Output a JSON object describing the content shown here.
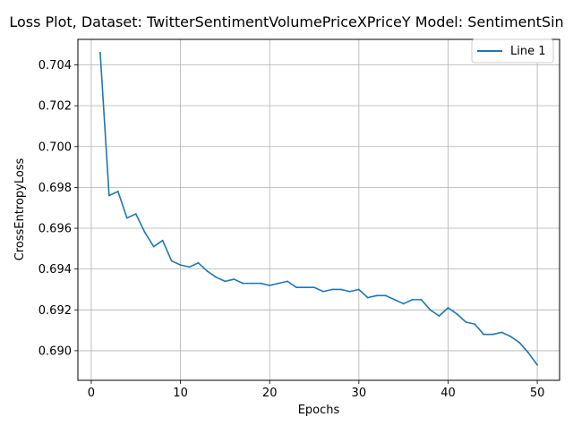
{
  "chart_data": {
    "type": "line",
    "title": "Loss Plot, Dataset: TwitterSentimentVolumePriceXPriceY Model: SentimentSin",
    "xlabel": "Epochs",
    "ylabel": "CrossEntropyLoss",
    "xlim": [
      -1.5,
      52.5
    ],
    "ylim": [
      0.68855,
      0.70525
    ],
    "xticks": [
      0,
      10,
      20,
      30,
      40,
      50
    ],
    "yticks": [
      0.69,
      0.692,
      0.694,
      0.696,
      0.698,
      0.7,
      0.702,
      0.704
    ],
    "xtick_labels": [
      "0",
      "10",
      "20",
      "30",
      "40",
      "50"
    ],
    "ytick_labels": [
      "0.690",
      "0.692",
      "0.694",
      "0.696",
      "0.698",
      "0.700",
      "0.702",
      "0.704"
    ],
    "grid": true,
    "legend_position": "top-right",
    "line_color": "#1f77b4",
    "series": [
      {
        "name": "Line 1",
        "x": [
          1,
          2,
          3,
          4,
          5,
          6,
          7,
          8,
          9,
          10,
          11,
          12,
          13,
          14,
          15,
          16,
          17,
          18,
          19,
          20,
          21,
          22,
          23,
          24,
          25,
          26,
          27,
          28,
          29,
          30,
          31,
          32,
          33,
          34,
          35,
          36,
          37,
          38,
          39,
          40,
          41,
          42,
          43,
          44,
          45,
          46,
          47,
          48,
          49,
          50
        ],
        "y": [
          0.7046,
          0.6976,
          0.6978,
          0.6965,
          0.6967,
          0.6958,
          0.6951,
          0.6954,
          0.6944,
          0.6942,
          0.6941,
          0.6943,
          0.6939,
          0.6936,
          0.6934,
          0.6935,
          0.6933,
          0.6933,
          0.6933,
          0.6932,
          0.6933,
          0.6934,
          0.6931,
          0.6931,
          0.6931,
          0.6929,
          0.693,
          0.693,
          0.6929,
          0.693,
          0.6926,
          0.6927,
          0.6927,
          0.6925,
          0.6923,
          0.6925,
          0.6925,
          0.692,
          0.6917,
          0.6921,
          0.6918,
          0.6914,
          0.6913,
          0.6908,
          0.6908,
          0.6909,
          0.6907,
          0.6904,
          0.6899,
          0.6893
        ]
      }
    ]
  }
}
